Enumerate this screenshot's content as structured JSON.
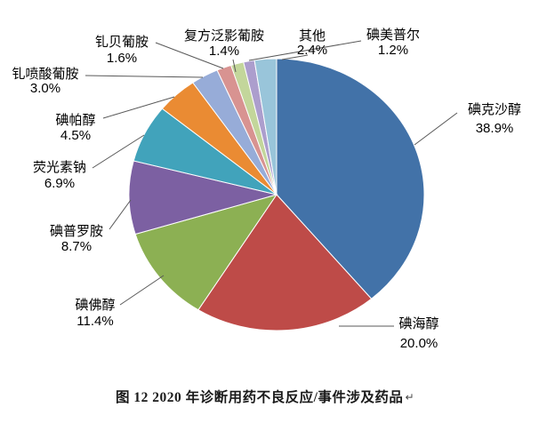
{
  "caption": {
    "text": "图 12  2020 年诊断用药不良反应/事件涉及药品",
    "return_mark": "↵"
  },
  "chart_data": {
    "type": "pie",
    "title": "图 12  2020 年诊断用药不良反应/事件涉及药品",
    "direction": "clockwise",
    "start_angle_deg": 0,
    "legend_position": "none",
    "label_style": "outside-with-leader-lines",
    "background_color": "#ffffff",
    "leader_line_color": "#595959",
    "slice_border_color": "#ffffff",
    "slices": [
      {
        "label": "碘克沙醇",
        "pct": 38.9,
        "pct_text": "38.9%",
        "color": "#4272A8"
      },
      {
        "label": "碘海醇",
        "pct": 20.0,
        "pct_text": "20.0%",
        "color": "#BE4B48"
      },
      {
        "label": "碘佛醇",
        "pct": 11.4,
        "pct_text": "11.4%",
        "color": "#8CB053"
      },
      {
        "label": "碘普罗胺",
        "pct": 8.7,
        "pct_text": "8.7%",
        "color": "#7C60A2"
      },
      {
        "label": "荧光素钠",
        "pct": 6.9,
        "pct_text": "6.9%",
        "color": "#41A3BB"
      },
      {
        "label": "碘帕醇",
        "pct": 4.5,
        "pct_text": "4.5%",
        "color": "#EA8B33"
      },
      {
        "label": "钆喷酸葡胺",
        "pct": 3.0,
        "pct_text": "3.0%",
        "color": "#97ACD8"
      },
      {
        "label": "钆贝葡胺",
        "pct": 1.6,
        "pct_text": "1.6%",
        "color": "#D89391"
      },
      {
        "label": "复方泛影葡胺",
        "pct": 1.4,
        "pct_text": "1.4%",
        "color": "#C3D69B"
      },
      {
        "label": "碘美普尔",
        "pct": 1.2,
        "pct_text": "1.2%",
        "color": "#AC9ECD"
      },
      {
        "label": "其他",
        "pct": 2.4,
        "pct_text": "2.4%",
        "color": "#99C5DA"
      }
    ]
  }
}
